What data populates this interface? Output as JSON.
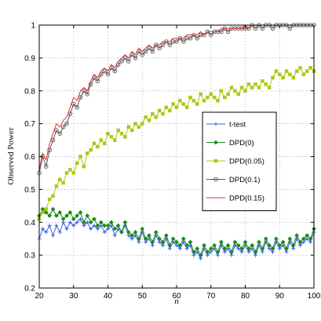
{
  "chart_data": {
    "type": "line",
    "xlabel": "n",
    "ylabel": "Observed Power",
    "xlim": [
      20,
      100
    ],
    "ylim": [
      0.2,
      1.0
    ],
    "x_ticks": [
      "20",
      "30",
      "40",
      "50",
      "60",
      "70",
      "80",
      "90",
      "100"
    ],
    "y_ticks": [
      "0.2",
      "0.3",
      "0.4",
      "0.5",
      "0.6",
      "0.7",
      "0.8",
      "0.9",
      "1"
    ],
    "grid": true,
    "legend_position": "center-right",
    "x": [
      20,
      21,
      22,
      23,
      24,
      25,
      26,
      27,
      28,
      29,
      30,
      31,
      32,
      33,
      34,
      35,
      36,
      37,
      38,
      39,
      40,
      41,
      42,
      43,
      44,
      45,
      46,
      47,
      48,
      49,
      50,
      51,
      52,
      53,
      54,
      55,
      56,
      57,
      58,
      59,
      60,
      61,
      62,
      63,
      64,
      65,
      66,
      67,
      68,
      69,
      70,
      71,
      72,
      73,
      74,
      75,
      76,
      77,
      78,
      79,
      80,
      81,
      82,
      83,
      84,
      85,
      86,
      87,
      88,
      89,
      90,
      91,
      92,
      93,
      94,
      95,
      96,
      97,
      98,
      99,
      100
    ],
    "series": [
      {
        "name": "t-test",
        "color": "#3a5fe8",
        "marker": "plus",
        "values": [
          0.35,
          0.38,
          0.37,
          0.39,
          0.36,
          0.39,
          0.37,
          0.4,
          0.38,
          0.4,
          0.39,
          0.4,
          0.41,
          0.39,
          0.4,
          0.38,
          0.39,
          0.38,
          0.39,
          0.37,
          0.38,
          0.39,
          0.36,
          0.38,
          0.37,
          0.39,
          0.36,
          0.35,
          0.36,
          0.34,
          0.37,
          0.34,
          0.35,
          0.33,
          0.36,
          0.34,
          0.33,
          0.35,
          0.32,
          0.34,
          0.33,
          0.32,
          0.34,
          0.32,
          0.33,
          0.3,
          0.31,
          0.29,
          0.32,
          0.3,
          0.31,
          0.32,
          0.3,
          0.33,
          0.31,
          0.32,
          0.3,
          0.33,
          0.32,
          0.31,
          0.33,
          0.31,
          0.32,
          0.3,
          0.33,
          0.31,
          0.34,
          0.32,
          0.31,
          0.34,
          0.32,
          0.33,
          0.31,
          0.34,
          0.32,
          0.35,
          0.33,
          0.34,
          0.35,
          0.34,
          0.37
        ]
      },
      {
        "name": "DPD(0)",
        "color": "#1a8a1a",
        "marker": "diamond",
        "values": [
          0.42,
          0.44,
          0.43,
          0.42,
          0.44,
          0.42,
          0.43,
          0.41,
          0.42,
          0.43,
          0.41,
          0.42,
          0.43,
          0.4,
          0.42,
          0.4,
          0.41,
          0.39,
          0.4,
          0.39,
          0.39,
          0.4,
          0.38,
          0.39,
          0.37,
          0.4,
          0.37,
          0.36,
          0.37,
          0.35,
          0.38,
          0.35,
          0.36,
          0.34,
          0.37,
          0.35,
          0.34,
          0.36,
          0.33,
          0.35,
          0.34,
          0.33,
          0.35,
          0.33,
          0.34,
          0.31,
          0.32,
          0.3,
          0.33,
          0.31,
          0.32,
          0.33,
          0.31,
          0.34,
          0.32,
          0.33,
          0.31,
          0.34,
          0.33,
          0.32,
          0.34,
          0.32,
          0.33,
          0.31,
          0.34,
          0.32,
          0.35,
          0.33,
          0.32,
          0.35,
          0.33,
          0.34,
          0.32,
          0.35,
          0.33,
          0.36,
          0.34,
          0.35,
          0.36,
          0.35,
          0.38
        ]
      },
      {
        "name": "DPD(0.05)",
        "color": "#a6cc14",
        "marker": "square",
        "values": [
          0.41,
          0.43,
          0.44,
          0.47,
          0.48,
          0.51,
          0.53,
          0.52,
          0.55,
          0.56,
          0.55,
          0.58,
          0.6,
          0.57,
          0.61,
          0.62,
          0.64,
          0.63,
          0.65,
          0.64,
          0.67,
          0.66,
          0.65,
          0.68,
          0.67,
          0.66,
          0.69,
          0.68,
          0.7,
          0.69,
          0.7,
          0.72,
          0.71,
          0.73,
          0.72,
          0.74,
          0.73,
          0.75,
          0.74,
          0.76,
          0.75,
          0.77,
          0.76,
          0.75,
          0.78,
          0.77,
          0.76,
          0.79,
          0.77,
          0.78,
          0.79,
          0.78,
          0.77,
          0.8,
          0.78,
          0.79,
          0.81,
          0.8,
          0.79,
          0.81,
          0.8,
          0.82,
          0.81,
          0.82,
          0.81,
          0.83,
          0.82,
          0.81,
          0.84,
          0.86,
          0.85,
          0.84,
          0.86,
          0.85,
          0.84,
          0.86,
          0.87,
          0.85,
          0.86,
          0.87,
          0.86
        ]
      },
      {
        "name": "DPD(0.1)",
        "color": "#555555",
        "marker": "circle",
        "values": [
          0.55,
          0.6,
          0.57,
          0.62,
          0.65,
          0.68,
          0.67,
          0.69,
          0.7,
          0.73,
          0.76,
          0.75,
          0.78,
          0.8,
          0.79,
          0.82,
          0.84,
          0.83,
          0.85,
          0.86,
          0.85,
          0.87,
          0.86,
          0.88,
          0.89,
          0.9,
          0.89,
          0.91,
          0.9,
          0.92,
          0.91,
          0.92,
          0.93,
          0.92,
          0.94,
          0.93,
          0.94,
          0.95,
          0.94,
          0.95,
          0.95,
          0.96,
          0.95,
          0.96,
          0.96,
          0.97,
          0.96,
          0.97,
          0.97,
          0.98,
          0.97,
          0.98,
          0.98,
          0.98,
          0.99,
          0.98,
          0.99,
          0.99,
          0.99,
          0.99,
          0.99,
          0.99,
          1.0,
          0.99,
          1.0,
          0.99,
          1.0,
          1.0,
          0.99,
          1.0,
          1.0,
          1.0,
          1.0,
          0.99,
          1.0,
          1.0,
          1.0,
          1.0,
          1.0,
          1.0,
          1.0
        ]
      },
      {
        "name": "DPD(0.15)",
        "color": "#e03030",
        "marker": "none",
        "values": [
          0.56,
          0.61,
          0.59,
          0.64,
          0.67,
          0.7,
          0.69,
          0.71,
          0.72,
          0.75,
          0.78,
          0.77,
          0.8,
          0.81,
          0.8,
          0.83,
          0.85,
          0.84,
          0.86,
          0.87,
          0.86,
          0.88,
          0.87,
          0.89,
          0.9,
          0.91,
          0.9,
          0.92,
          0.91,
          0.93,
          0.92,
          0.93,
          0.94,
          0.93,
          0.94,
          0.94,
          0.95,
          0.95,
          0.95,
          0.96,
          0.96,
          0.96,
          0.96,
          0.97,
          0.97,
          0.97,
          0.97,
          0.98,
          0.97,
          0.98,
          0.98,
          0.98,
          0.98,
          0.99,
          0.99,
          0.99,
          0.99,
          0.99,
          0.99,
          0.99,
          1.0,
          0.99,
          1.0,
          1.0,
          1.0,
          1.0,
          1.0,
          1.0,
          1.0,
          1.0,
          1.0,
          1.0,
          1.0,
          1.0,
          1.0,
          1.0,
          1.0,
          1.0,
          1.0,
          1.0,
          1.0
        ]
      }
    ]
  }
}
